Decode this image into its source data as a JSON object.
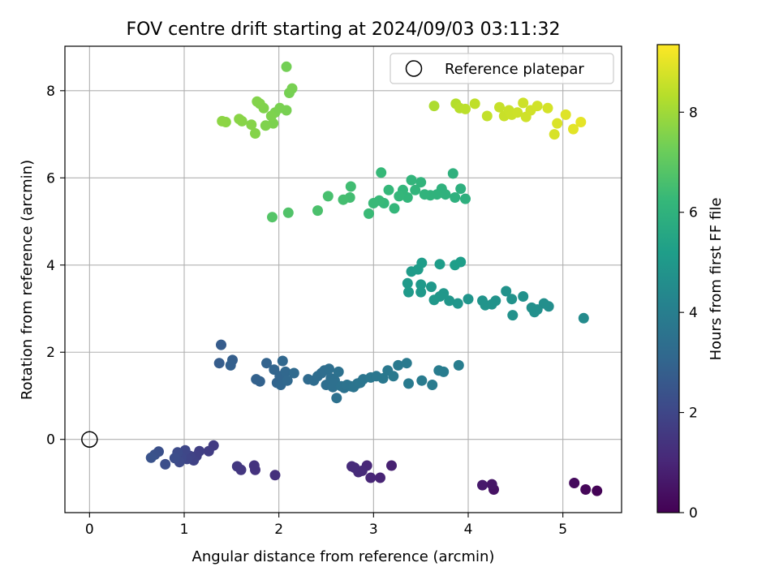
{
  "chart_data": {
    "type": "scatter",
    "title": "FOV centre drift starting at 2024/09/03 03:11:32",
    "xlabel": "Angular distance from reference (arcmin)",
    "ylabel": "Rotation from reference (arcmin)",
    "xlim": [
      -0.26,
      5.62
    ],
    "ylim": [
      -1.68,
      9.02
    ],
    "xticks": [
      0,
      1,
      2,
      3,
      4,
      5
    ],
    "yticks": [
      0,
      2,
      4,
      6,
      8
    ],
    "grid": true,
    "legend": {
      "placement": "top-right",
      "entries": [
        "Reference platepar"
      ]
    },
    "reference_point": {
      "x": 0,
      "y": 0,
      "label": "Reference platepar"
    },
    "colorbar": {
      "label": "Hours from first FF file",
      "range": [
        0,
        9.35
      ],
      "ticks": [
        0,
        2,
        4,
        6,
        8
      ],
      "colormap": [
        "#440154",
        "#482878",
        "#3e4989",
        "#31688e",
        "#26828e",
        "#1f9e89",
        "#35b779",
        "#6ece58",
        "#b5de2b",
        "#fde725"
      ]
    },
    "point_fields": [
      "x",
      "y",
      "hours"
    ],
    "points": [
      [
        5.36,
        -1.18,
        0.05
      ],
      [
        5.24,
        -1.15,
        0.15
      ],
      [
        5.12,
        -1.0,
        0.25
      ],
      [
        4.27,
        -1.15,
        0.45
      ],
      [
        4.25,
        -1.03,
        0.55
      ],
      [
        4.15,
        -1.05,
        0.65
      ],
      [
        3.19,
        -0.6,
        0.85
      ],
      [
        3.07,
        -0.88,
        0.95
      ],
      [
        2.97,
        -0.88,
        1.0
      ],
      [
        2.93,
        -0.6,
        1.05
      ],
      [
        2.88,
        -0.72,
        1.1
      ],
      [
        2.84,
        -0.75,
        1.12
      ],
      [
        2.8,
        -0.65,
        1.15
      ],
      [
        2.77,
        -0.62,
        1.18
      ],
      [
        1.96,
        -0.82,
        1.3
      ],
      [
        1.75,
        -0.7,
        1.4
      ],
      [
        1.74,
        -0.6,
        1.42
      ],
      [
        1.6,
        -0.7,
        1.5
      ],
      [
        1.56,
        -0.62,
        1.55
      ],
      [
        1.31,
        -0.14,
        1.65
      ],
      [
        1.26,
        -0.27,
        1.7
      ],
      [
        1.16,
        -0.27,
        1.75
      ],
      [
        1.13,
        -0.38,
        1.8
      ],
      [
        1.1,
        -0.48,
        1.85
      ],
      [
        1.06,
        -0.38,
        1.9
      ],
      [
        1.03,
        -0.45,
        1.95
      ],
      [
        1.01,
        -0.25,
        2.0
      ],
      [
        0.97,
        -0.42,
        2.05
      ],
      [
        0.95,
        -0.52,
        2.1
      ],
      [
        0.93,
        -0.3,
        2.15
      ],
      [
        0.9,
        -0.43,
        2.2
      ],
      [
        0.8,
        -0.57,
        2.25
      ],
      [
        0.73,
        -0.28,
        2.3
      ],
      [
        0.69,
        -0.35,
        2.35
      ],
      [
        0.65,
        -0.42,
        2.4
      ],
      [
        1.39,
        2.17,
        2.7
      ],
      [
        1.37,
        1.75,
        2.75
      ],
      [
        1.51,
        1.82,
        2.8
      ],
      [
        1.49,
        1.7,
        2.85
      ],
      [
        1.76,
        1.38,
        2.9
      ],
      [
        1.8,
        1.33,
        2.92
      ],
      [
        1.87,
        1.75,
        2.95
      ],
      [
        1.95,
        1.6,
        3.0
      ],
      [
        1.98,
        1.3,
        3.02
      ],
      [
        2.01,
        1.45,
        3.05
      ],
      [
        2.02,
        1.25,
        3.08
      ],
      [
        2.04,
        1.8,
        3.1
      ],
      [
        2.07,
        1.55,
        3.12
      ],
      [
        2.09,
        1.35,
        3.15
      ],
      [
        2.16,
        1.52,
        3.18
      ],
      [
        2.31,
        1.38,
        3.25
      ],
      [
        2.37,
        1.35,
        3.28
      ],
      [
        2.41,
        1.45,
        3.3
      ],
      [
        2.45,
        1.52,
        3.32
      ],
      [
        2.48,
        1.58,
        3.34
      ],
      [
        2.5,
        1.25,
        3.36
      ],
      [
        2.53,
        1.62,
        3.38
      ],
      [
        2.55,
        1.4,
        3.4
      ],
      [
        2.57,
        1.2,
        3.42
      ],
      [
        2.59,
        1.35,
        3.44
      ],
      [
        2.61,
        0.95,
        3.46
      ],
      [
        2.63,
        1.55,
        3.48
      ],
      [
        2.66,
        1.22,
        3.5
      ],
      [
        2.69,
        1.18,
        3.52
      ],
      [
        2.72,
        1.25,
        3.54
      ],
      [
        2.76,
        1.22,
        3.56
      ],
      [
        2.79,
        1.2,
        3.58
      ],
      [
        2.83,
        1.28,
        3.6
      ],
      [
        2.86,
        1.3,
        3.62
      ],
      [
        2.89,
        1.38,
        3.64
      ],
      [
        2.97,
        1.42,
        3.7
      ],
      [
        3.03,
        1.45,
        3.72
      ],
      [
        3.1,
        1.4,
        3.74
      ],
      [
        3.15,
        1.58,
        3.76
      ],
      [
        3.21,
        1.45,
        3.78
      ],
      [
        3.26,
        1.7,
        3.8
      ],
      [
        3.35,
        1.75,
        3.82
      ],
      [
        3.37,
        1.28,
        3.84
      ],
      [
        3.51,
        1.35,
        3.86
      ],
      [
        3.62,
        1.25,
        3.88
      ],
      [
        3.69,
        1.58,
        3.9
      ],
      [
        3.74,
        1.55,
        3.92
      ],
      [
        3.9,
        1.7,
        3.94
      ],
      [
        5.22,
        2.78,
        4.5
      ],
      [
        4.85,
        3.05,
        4.6
      ],
      [
        4.8,
        3.12,
        4.62
      ],
      [
        4.73,
        2.98,
        4.64
      ],
      [
        4.7,
        2.92,
        4.66
      ],
      [
        4.67,
        3.02,
        4.68
      ],
      [
        4.58,
        3.28,
        4.7
      ],
      [
        4.47,
        2.85,
        4.72
      ],
      [
        4.46,
        3.22,
        4.74
      ],
      [
        4.4,
        3.4,
        4.76
      ],
      [
        4.29,
        3.18,
        4.78
      ],
      [
        4.25,
        3.1,
        4.8
      ],
      [
        4.18,
        3.08,
        4.82
      ],
      [
        4.15,
        3.18,
        4.84
      ],
      [
        4.0,
        3.22,
        4.86
      ],
      [
        3.89,
        3.12,
        4.88
      ],
      [
        3.8,
        3.18,
        4.9
      ],
      [
        3.74,
        3.35,
        4.92
      ],
      [
        3.7,
        3.28,
        4.94
      ],
      [
        3.64,
        3.2,
        4.96
      ],
      [
        3.61,
        3.5,
        4.98
      ],
      [
        3.5,
        3.38,
        5.0
      ],
      [
        3.5,
        3.55,
        5.02
      ],
      [
        3.37,
        3.38,
        5.04
      ],
      [
        3.36,
        3.58,
        5.06
      ],
      [
        3.4,
        3.85,
        5.1
      ],
      [
        3.47,
        3.9,
        5.12
      ],
      [
        3.51,
        4.05,
        5.14
      ],
      [
        3.7,
        4.02,
        5.16
      ],
      [
        3.86,
        4.0,
        5.18
      ],
      [
        3.92,
        4.07,
        5.2
      ],
      [
        3.97,
        5.52,
        5.9
      ],
      [
        3.92,
        5.75,
        5.92
      ],
      [
        3.86,
        5.55,
        5.94
      ],
      [
        3.84,
        6.1,
        5.96
      ],
      [
        3.76,
        5.62,
        5.98
      ],
      [
        3.72,
        5.75,
        6.0
      ],
      [
        3.67,
        5.62,
        6.02
      ],
      [
        3.6,
        5.6,
        6.04
      ],
      [
        3.54,
        5.62,
        6.06
      ],
      [
        3.5,
        5.9,
        6.08
      ],
      [
        3.44,
        5.72,
        6.1
      ],
      [
        3.4,
        5.95,
        6.12
      ],
      [
        3.36,
        5.55,
        6.14
      ],
      [
        3.31,
        5.72,
        6.16
      ],
      [
        3.27,
        5.58,
        6.18
      ],
      [
        3.22,
        5.3,
        6.2
      ],
      [
        3.16,
        5.72,
        6.22
      ],
      [
        3.11,
        5.42,
        6.24
      ],
      [
        3.08,
        6.12,
        6.26
      ],
      [
        3.06,
        5.48,
        6.28
      ],
      [
        3.0,
        5.42,
        6.3
      ],
      [
        2.95,
        5.18,
        6.32
      ],
      [
        2.76,
        5.8,
        6.45
      ],
      [
        2.75,
        5.55,
        6.48
      ],
      [
        2.68,
        5.5,
        6.52
      ],
      [
        2.52,
        5.58,
        6.58
      ],
      [
        2.41,
        5.25,
        6.64
      ],
      [
        2.1,
        5.2,
        6.75
      ],
      [
        1.93,
        5.1,
        6.8
      ],
      [
        2.08,
        8.55,
        7.35
      ],
      [
        2.11,
        7.95,
        7.38
      ],
      [
        2.14,
        8.05,
        7.4
      ],
      [
        2.08,
        7.55,
        7.42
      ],
      [
        2.01,
        7.6,
        7.44
      ],
      [
        1.96,
        7.5,
        7.46
      ],
      [
        1.94,
        7.25,
        7.48
      ],
      [
        1.92,
        7.42,
        7.5
      ],
      [
        1.86,
        7.2,
        7.52
      ],
      [
        1.84,
        7.6,
        7.54
      ],
      [
        1.8,
        7.7,
        7.56
      ],
      [
        1.77,
        7.75,
        7.58
      ],
      [
        1.75,
        7.02,
        7.6
      ],
      [
        1.71,
        7.22,
        7.62
      ],
      [
        1.61,
        7.3,
        7.64
      ],
      [
        1.58,
        7.35,
        7.66
      ],
      [
        1.44,
        7.28,
        7.7
      ],
      [
        1.4,
        7.3,
        7.72
      ],
      [
        3.64,
        7.65,
        8.2
      ],
      [
        3.87,
        7.7,
        8.3
      ],
      [
        3.91,
        7.6,
        8.35
      ],
      [
        3.97,
        7.58,
        8.4
      ],
      [
        4.07,
        7.7,
        8.45
      ],
      [
        4.2,
        7.42,
        8.5
      ],
      [
        4.33,
        7.62,
        8.55
      ],
      [
        4.38,
        7.42,
        8.58
      ],
      [
        4.43,
        7.55,
        8.6
      ],
      [
        4.46,
        7.45,
        8.62
      ],
      [
        4.52,
        7.5,
        8.64
      ],
      [
        4.58,
        7.72,
        8.66
      ],
      [
        4.61,
        7.4,
        8.68
      ],
      [
        4.66,
        7.55,
        8.7
      ],
      [
        4.73,
        7.65,
        8.72
      ],
      [
        4.84,
        7.6,
        8.76
      ],
      [
        4.91,
        7.0,
        8.8
      ],
      [
        4.94,
        7.25,
        8.84
      ],
      [
        5.03,
        7.45,
        8.9
      ],
      [
        5.11,
        7.12,
        8.96
      ],
      [
        5.19,
        7.28,
        9.0
      ]
    ]
  }
}
